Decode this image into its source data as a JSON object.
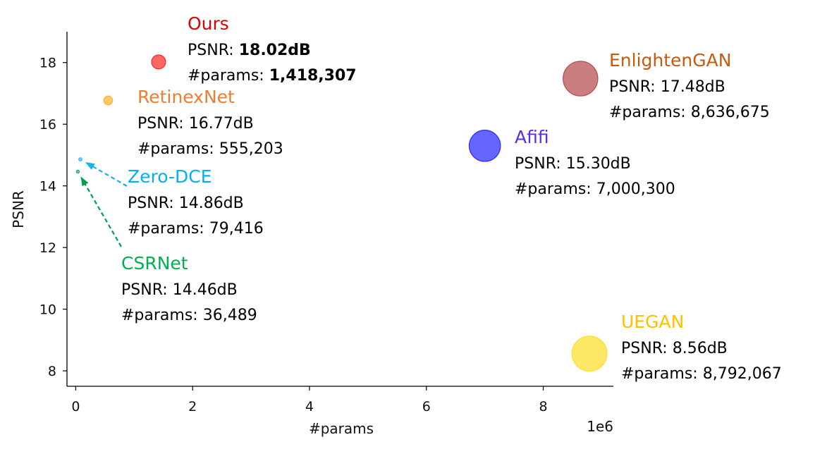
{
  "chart_data": {
    "type": "scatter",
    "title": "",
    "xlabel": "#params",
    "ylabel": "PSNR",
    "x_offset_text": "1e6",
    "xlim": [
      -0.15,
      9.2
    ],
    "ylim": [
      7.5,
      19.0
    ],
    "xticks": [
      0,
      2,
      4,
      6,
      8
    ],
    "yticks": [
      8,
      10,
      12,
      14,
      16,
      18
    ],
    "grid": false,
    "x_multiplier": 1000000,
    "points": [
      {
        "name": "Ours",
        "x": 1418307,
        "y": 18.02,
        "color": "#ff0000",
        "label_color": "#e00000",
        "psnr_text": "PSNR: ",
        "psnr_value": "18.02dB",
        "params_text": "#params: ",
        "params_value": "1,418,307",
        "bold_values": true
      },
      {
        "name": "RetinexNet",
        "x": 555203,
        "y": 16.77,
        "color": "#ffa500",
        "label_color": "#ed7d31",
        "psnr_text": "PSNR: ",
        "psnr_value": "16.77dB",
        "params_text": "#params: ",
        "params_value": "555,203",
        "bold_values": false
      },
      {
        "name": "Zero-DCE",
        "x": 79416,
        "y": 14.86,
        "color": "#1ab0e8",
        "label_color": "#00b0f0",
        "psnr_text": "PSNR: ",
        "psnr_value": "14.86dB",
        "params_text": "#params: ",
        "params_value": "79,416",
        "bold_values": false
      },
      {
        "name": "CSRNet",
        "x": 36489,
        "y": 14.46,
        "color": "#00a050",
        "label_color": "#00b050",
        "psnr_text": "PSNR: ",
        "psnr_value": "14.46dB",
        "params_text": "#params: ",
        "params_value": "36,489",
        "bold_values": false
      },
      {
        "name": "Afifi",
        "x": 7000300,
        "y": 15.3,
        "color": "#0000ff",
        "label_color": "#5a2ee0",
        "psnr_text": "PSNR: ",
        "psnr_value": "15.30dB",
        "params_text": "#params: ",
        "params_value": "7,000,300",
        "bold_values": false
      },
      {
        "name": "EnlightenGAN",
        "x": 8636675,
        "y": 17.48,
        "color": "#a52a2a",
        "label_color": "#c55a11",
        "psnr_text": "PSNR: ",
        "psnr_value": "17.48dB",
        "params_text": "#params: ",
        "params_value": "8,636,675",
        "bold_values": false
      },
      {
        "name": "UEGAN",
        "x": 8792067,
        "y": 8.56,
        "color": "#ffd700",
        "label_color": "#ffc000",
        "psnr_text": "PSNR: ",
        "psnr_value": "8.56dB",
        "params_text": "#params: ",
        "params_value": "8,792,067",
        "bold_values": false
      }
    ]
  }
}
